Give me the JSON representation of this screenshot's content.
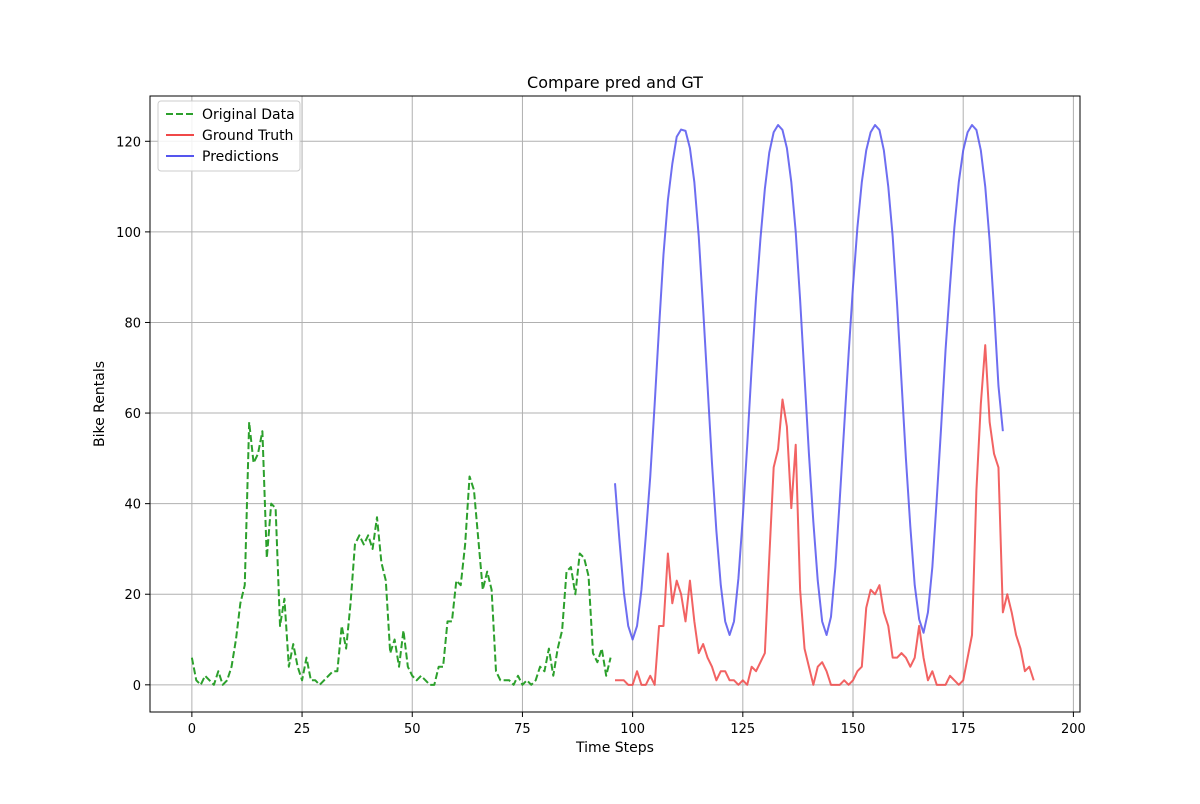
{
  "chart_data": {
    "type": "line",
    "title": "Compare pred and GT",
    "xlabel": "Time Steps",
    "ylabel": "Bike Rentals",
    "xlim": [
      -9.5,
      201.5
    ],
    "ylim": [
      -6,
      130
    ],
    "xticks": [
      0,
      25,
      50,
      75,
      100,
      125,
      150,
      175,
      200
    ],
    "yticks": [
      0,
      20,
      40,
      60,
      80,
      100,
      120
    ],
    "grid": true,
    "legend": "top-left",
    "series": [
      {
        "name": "Original Data",
        "color": "#2ca02c",
        "style": "dashed",
        "x_start": 0,
        "values": [
          6,
          1,
          0,
          2,
          1,
          0,
          3,
          0,
          1,
          4,
          10,
          18,
          22,
          58,
          49,
          51,
          56,
          28,
          40,
          39,
          13,
          19,
          4,
          9,
          4,
          1,
          6,
          1,
          1,
          0,
          1,
          2,
          3,
          3,
          13,
          8,
          18,
          31,
          33,
          31,
          33,
          30,
          37,
          27,
          23,
          7,
          10,
          4,
          12,
          4,
          2,
          1,
          2,
          1,
          0,
          0,
          4,
          4,
          14,
          14,
          23,
          22,
          31,
          46,
          43,
          32,
          21,
          25,
          21,
          3,
          1,
          1,
          1,
          0,
          2,
          0,
          1,
          0,
          1,
          4,
          3,
          8,
          2,
          8,
          12,
          25,
          26,
          20,
          29,
          28,
          24,
          7,
          5,
          8,
          2,
          6
        ]
      },
      {
        "name": "Ground Truth",
        "color": "#f04848",
        "style": "solid",
        "x_start": 96,
        "values": [
          1,
          1,
          1,
          0,
          0,
          3,
          0,
          0,
          2,
          0,
          13,
          13,
          29,
          18,
          23,
          20,
          14,
          23,
          14,
          7,
          9,
          6,
          4,
          1,
          3,
          3,
          1,
          1,
          0,
          1,
          0,
          4,
          3,
          5,
          7,
          28,
          48,
          52,
          63,
          57,
          39,
          53,
          21,
          8,
          4,
          0,
          4,
          5,
          3,
          0,
          0,
          0,
          1,
          0,
          1,
          3,
          4,
          17,
          21,
          20,
          22,
          16,
          13,
          6,
          6,
          7,
          6,
          4,
          6,
          13,
          6,
          1,
          3,
          0,
          0,
          0,
          2,
          1,
          0,
          1,
          6,
          11,
          43,
          62,
          75,
          58,
          51,
          48,
          16,
          20,
          16,
          11,
          8,
          3,
          4,
          1
        ]
      },
      {
        "name": "Predictions",
        "color": "#5555ee",
        "style": "solid",
        "x_start": 96,
        "values": [
          44.5,
          32,
          20.5,
          13,
          10,
          13,
          21,
          33,
          46,
          62,
          79,
          95,
          107,
          115,
          121,
          122.6,
          122.3,
          118.5,
          111,
          99,
          83,
          66,
          49,
          34,
          22,
          14,
          11,
          14,
          23.5,
          37,
          53,
          70,
          85.5,
          98.5,
          109.5,
          117.5,
          122,
          123.6,
          122.5,
          118.5,
          111,
          100,
          85,
          68,
          51,
          36,
          23,
          14,
          11,
          15,
          26,
          41,
          57,
          73,
          88,
          101,
          111,
          118,
          122,
          123.6,
          122.5,
          118,
          110,
          99,
          84,
          67,
          50,
          35,
          22,
          14.5,
          11.5,
          16,
          26,
          41,
          57,
          74,
          88,
          101,
          111,
          118,
          122,
          123.6,
          122.5,
          118,
          110,
          98,
          83,
          66,
          56
        ]
      }
    ]
  }
}
